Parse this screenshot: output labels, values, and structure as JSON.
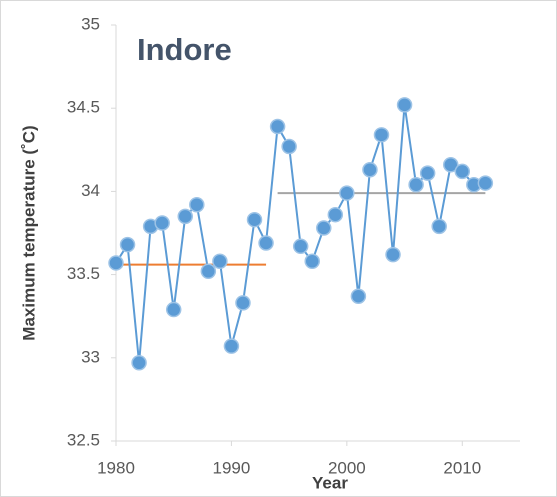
{
  "chart_data": {
    "type": "line",
    "title": "Indore",
    "x_label": "Year",
    "y_label": "Maximum temperature (˚C)",
    "x": [
      1980,
      1981,
      1982,
      1983,
      1984,
      1985,
      1986,
      1987,
      1988,
      1989,
      1990,
      1991,
      1992,
      1993,
      1994,
      1995,
      1996,
      1997,
      1998,
      1999,
      2000,
      2001,
      2002,
      2003,
      2004,
      2005,
      2006,
      2007,
      2008,
      2009,
      2010,
      2011,
      2012
    ],
    "series": [
      {
        "color": "#5b9bd5",
        "values": [
          33.57,
          33.68,
          32.97,
          33.79,
          33.81,
          33.29,
          33.85,
          33.92,
          33.52,
          33.58,
          33.07,
          33.33,
          33.83,
          33.69,
          34.39,
          34.27,
          33.67,
          33.58,
          33.78,
          33.86,
          33.99,
          33.37,
          34.13,
          34.34,
          33.62,
          34.52,
          34.04,
          34.11,
          33.79,
          34.16,
          34.12,
          34.04,
          34.05
        ]
      }
    ],
    "reference_lines": [
      {
        "color": "#ed7d31",
        "x": [
          1980,
          1993
        ],
        "values": [
          33.56,
          33.56
        ]
      },
      {
        "color": "#a5a5a5",
        "x": [
          1994,
          2012
        ],
        "values": [
          33.99,
          33.99
        ]
      }
    ],
    "xlim": [
      1980,
      2015
    ],
    "xticks": [
      1980,
      1990,
      2000,
      2010
    ],
    "ylim": [
      32.5,
      35
    ],
    "yticks": [
      32.5,
      33,
      33.5,
      34,
      34.5,
      35
    ],
    "grid": false
  }
}
